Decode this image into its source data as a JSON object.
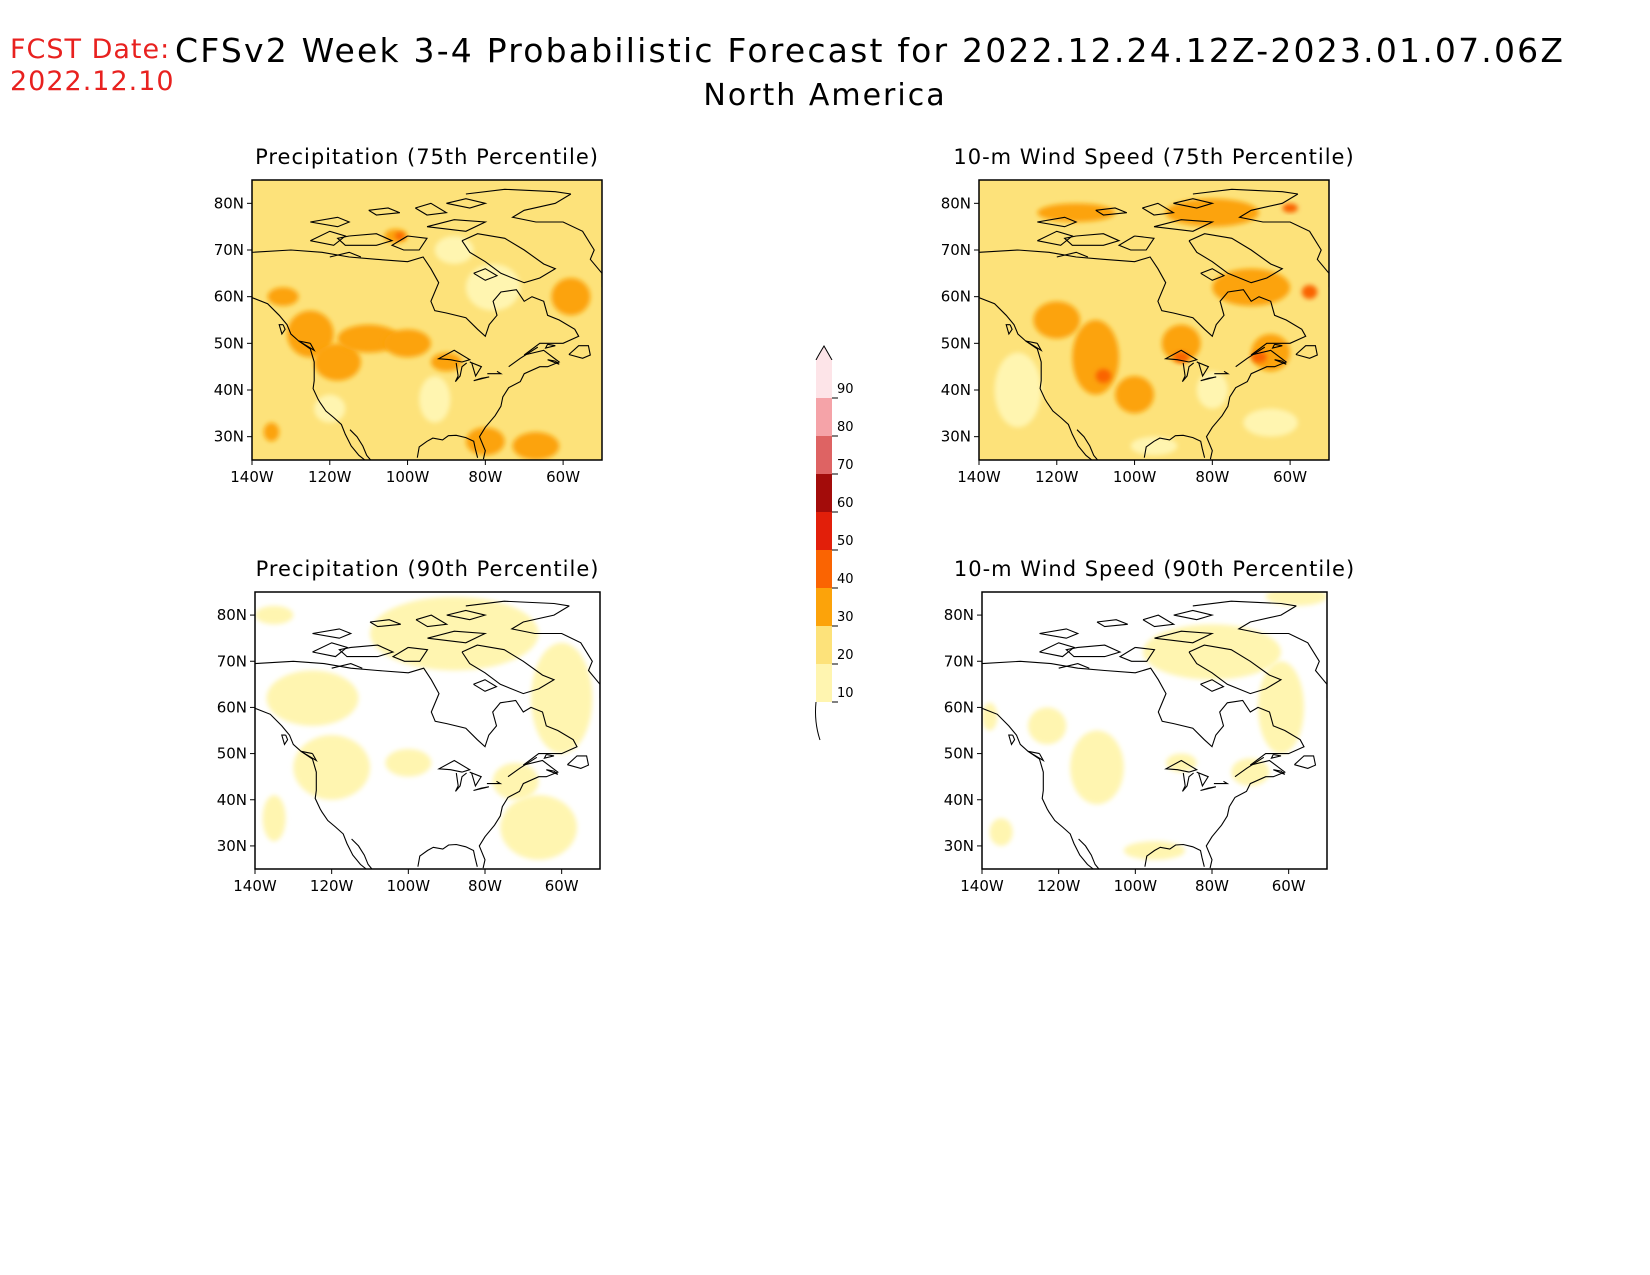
{
  "header": {
    "fcst_label": "FCST Date:",
    "fcst_date": "2022.12.10",
    "title": "CFSv2 Week 3-4 Probabilistic Forecast for 2022.12.24.12Z-2023.01.07.06Z",
    "region": "North America"
  },
  "colors": {
    "c10": "#fff5b0",
    "c20": "#fde27a",
    "c30": "#fca30a",
    "c40": "#fa6402",
    "c50": "#e21f0a",
    "c60": "#a30c0a",
    "c70": "#de6363",
    "c80": "#f5a3a8",
    "c90": "#fde4e8",
    "coast": "#000000"
  },
  "axes": {
    "lon_labels": [
      "140W",
      "120W",
      "100W",
      "80W",
      "60W"
    ],
    "lat_labels": [
      "80N",
      "70N",
      "60N",
      "50N",
      "40N",
      "30N"
    ]
  },
  "panels": [
    {
      "id": "precip75",
      "title": "Precipitation (75th Percentile)",
      "base_level": 20,
      "patches": [
        {
          "level": 30,
          "lon": -125,
          "lat": 52,
          "rx": 6,
          "ry": 5
        },
        {
          "level": 30,
          "lon": -118,
          "lat": 46,
          "rx": 6,
          "ry": 4
        },
        {
          "level": 30,
          "lon": -110,
          "lat": 51,
          "rx": 8,
          "ry": 3
        },
        {
          "level": 30,
          "lon": -100,
          "lat": 50,
          "rx": 6,
          "ry": 3
        },
        {
          "level": 30,
          "lon": -132,
          "lat": 60,
          "rx": 4,
          "ry": 2
        },
        {
          "level": 30,
          "lon": -58,
          "lat": 60,
          "rx": 5,
          "ry": 4
        },
        {
          "level": 30,
          "lon": -80,
          "lat": 29,
          "rx": 5,
          "ry": 3
        },
        {
          "level": 30,
          "lon": -67,
          "lat": 28,
          "rx": 6,
          "ry": 3
        },
        {
          "level": 30,
          "lon": -135,
          "lat": 31,
          "rx": 2,
          "ry": 2
        },
        {
          "level": 30,
          "lon": -90,
          "lat": 46,
          "rx": 4,
          "ry": 2
        },
        {
          "level": 30,
          "lon": -103,
          "lat": 73,
          "rx": 3,
          "ry": 1.5
        },
        {
          "level": 40,
          "lon": -102,
          "lat": 73,
          "rx": 1.2,
          "ry": 0.8
        },
        {
          "level": 10,
          "lon": -78,
          "lat": 62,
          "rx": 7,
          "ry": 5
        },
        {
          "level": 10,
          "lon": -93,
          "lat": 38,
          "rx": 4,
          "ry": 5
        },
        {
          "level": 10,
          "lon": -120,
          "lat": 36,
          "rx": 4,
          "ry": 3
        },
        {
          "level": 10,
          "lon": -88,
          "lat": 70,
          "rx": 5,
          "ry": 3
        }
      ]
    },
    {
      "id": "wind75",
      "title": "10-m Wind Speed (75th Percentile)",
      "base_level": 20,
      "patches": [
        {
          "level": 30,
          "lon": -110,
          "lat": 47,
          "rx": 6,
          "ry": 8
        },
        {
          "level": 30,
          "lon": -120,
          "lat": 55,
          "rx": 6,
          "ry": 4
        },
        {
          "level": 30,
          "lon": -88,
          "lat": 50,
          "rx": 5,
          "ry": 4
        },
        {
          "level": 30,
          "lon": -65,
          "lat": 48,
          "rx": 5,
          "ry": 4
        },
        {
          "level": 30,
          "lon": -70,
          "lat": 62,
          "rx": 10,
          "ry": 4
        },
        {
          "level": 30,
          "lon": -80,
          "lat": 78,
          "rx": 12,
          "ry": 3
        },
        {
          "level": 30,
          "lon": -115,
          "lat": 78,
          "rx": 10,
          "ry": 2
        },
        {
          "level": 30,
          "lon": -100,
          "lat": 39,
          "rx": 5,
          "ry": 4
        },
        {
          "level": 40,
          "lon": -108,
          "lat": 43,
          "rx": 2,
          "ry": 1.5
        },
        {
          "level": 40,
          "lon": -88,
          "lat": 47,
          "rx": 2,
          "ry": 1.2
        },
        {
          "level": 40,
          "lon": -68,
          "lat": 47,
          "rx": 2,
          "ry": 1.2
        },
        {
          "level": 40,
          "lon": -60,
          "lat": 79,
          "rx": 2,
          "ry": 1
        },
        {
          "level": 40,
          "lon": -55,
          "lat": 61,
          "rx": 2,
          "ry": 1.5
        },
        {
          "level": 10,
          "lon": -130,
          "lat": 40,
          "rx": 6,
          "ry": 8
        },
        {
          "level": 10,
          "lon": -80,
          "lat": 40,
          "rx": 4,
          "ry": 4
        },
        {
          "level": 10,
          "lon": -95,
          "lat": 28,
          "rx": 6,
          "ry": 2
        },
        {
          "level": 10,
          "lon": -65,
          "lat": 33,
          "rx": 7,
          "ry": 3
        }
      ]
    },
    {
      "id": "precip90",
      "title": "Precipitation (90th Percentile)",
      "base_level": 0,
      "patches": [
        {
          "level": 10,
          "lon": -125,
          "lat": 62,
          "rx": 12,
          "ry": 6
        },
        {
          "level": 10,
          "lon": -120,
          "lat": 47,
          "rx": 10,
          "ry": 7
        },
        {
          "level": 10,
          "lon": -100,
          "lat": 48,
          "rx": 6,
          "ry": 3
        },
        {
          "level": 10,
          "lon": -88,
          "lat": 76,
          "rx": 22,
          "ry": 8
        },
        {
          "level": 10,
          "lon": -60,
          "lat": 62,
          "rx": 8,
          "ry": 12
        },
        {
          "level": 10,
          "lon": -66,
          "lat": 34,
          "rx": 10,
          "ry": 7
        },
        {
          "level": 10,
          "lon": -135,
          "lat": 36,
          "rx": 3,
          "ry": 5
        },
        {
          "level": 10,
          "lon": -72,
          "lat": 44,
          "rx": 6,
          "ry": 4
        },
        {
          "level": 10,
          "lon": -135,
          "lat": 80,
          "rx": 5,
          "ry": 2
        }
      ]
    },
    {
      "id": "wind90",
      "title": "10-m Wind Speed (90th Percentile)",
      "base_level": 0,
      "patches": [
        {
          "level": 10,
          "lon": -110,
          "lat": 47,
          "rx": 7,
          "ry": 8
        },
        {
          "level": 10,
          "lon": -123,
          "lat": 56,
          "rx": 5,
          "ry": 4
        },
        {
          "level": 10,
          "lon": -80,
          "lat": 72,
          "rx": 18,
          "ry": 6
        },
        {
          "level": 10,
          "lon": -88,
          "lat": 48,
          "rx": 4,
          "ry": 2
        },
        {
          "level": 10,
          "lon": -62,
          "lat": 60,
          "rx": 6,
          "ry": 10
        },
        {
          "level": 10,
          "lon": -70,
          "lat": 46,
          "rx": 5,
          "ry": 3
        },
        {
          "level": 10,
          "lon": -95,
          "lat": 29,
          "rx": 8,
          "ry": 2
        },
        {
          "level": 10,
          "lon": -138,
          "lat": 58,
          "rx": 2,
          "ry": 3
        },
        {
          "level": 10,
          "lon": -58,
          "lat": 84,
          "rx": 8,
          "ry": 2
        },
        {
          "level": 10,
          "lon": -135,
          "lat": 33,
          "rx": 3,
          "ry": 3
        }
      ]
    }
  ],
  "colorbar": {
    "levels": [
      10,
      20,
      30,
      40,
      50,
      60,
      70,
      80,
      90
    ],
    "labels": [
      "10",
      "20",
      "30",
      "40",
      "50",
      "60",
      "70",
      "80",
      "90"
    ]
  }
}
